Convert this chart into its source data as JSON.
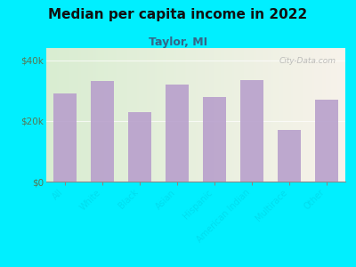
{
  "title": "Median per capita income in 2022",
  "subtitle": "Taylor, MI",
  "categories": [
    "All",
    "White",
    "Black",
    "Asian",
    "Hispanic",
    "American Indian",
    "Multirace",
    "Other"
  ],
  "values": [
    29000,
    33000,
    23000,
    32000,
    28000,
    33500,
    17000,
    27000
  ],
  "bar_color": "#b8a0cc",
  "background_outer": "#00efff",
  "background_chart_left": "#d8ecd0",
  "background_chart_right": "#f5f0e8",
  "title_color": "#111111",
  "subtitle_color": "#336688",
  "ytick_color": "#557755",
  "xtick_color": "#00ddee",
  "yticks": [
    0,
    20000,
    40000
  ],
  "ytick_labels": [
    "$0",
    "$20k",
    "$40k"
  ],
  "ylim": [
    0,
    44000
  ],
  "watermark": "City-Data.com"
}
